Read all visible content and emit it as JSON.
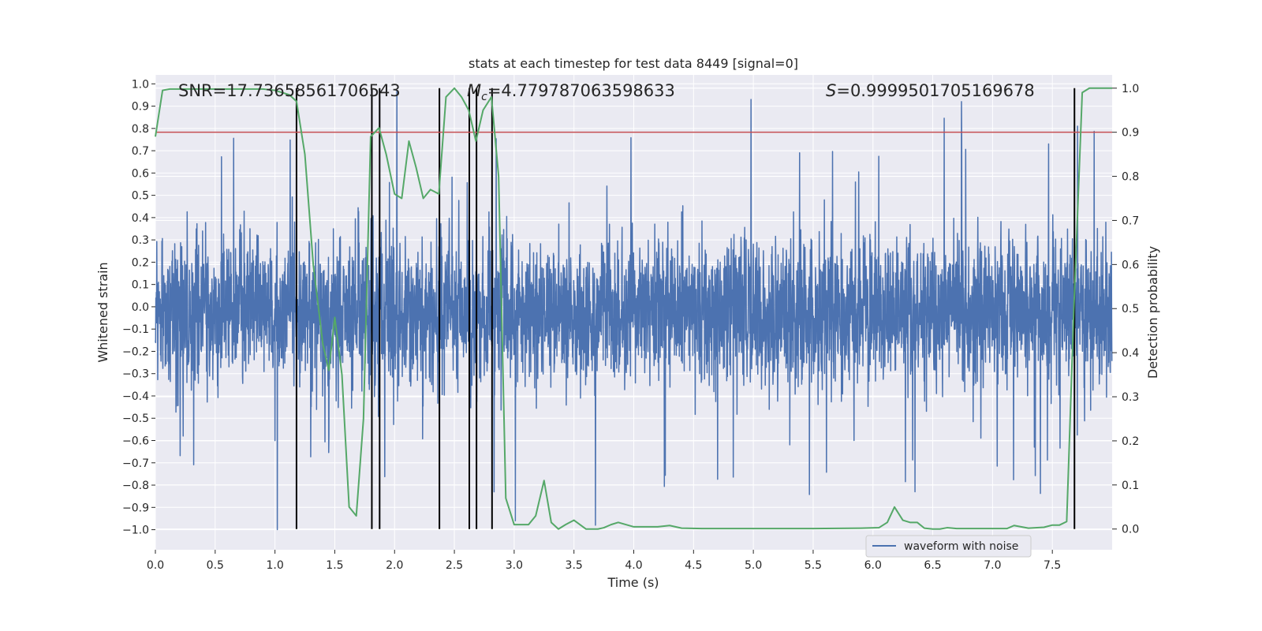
{
  "chart_data": {
    "type": "line",
    "title": "stats at each timestep for test data 8449 [signal=0]",
    "xlabel": "Time (s)",
    "ylabel_left": "Whitened strain",
    "ylabel_right": "Detection probability",
    "xlim": [
      0.0,
      8.0
    ],
    "ylim_left": [
      -1.09,
      1.04
    ],
    "ylim_right": [
      -0.047,
      1.03
    ],
    "x_ticks": [
      0.0,
      0.5,
      1.0,
      1.5,
      2.0,
      2.5,
      3.0,
      3.5,
      4.0,
      4.5,
      5.0,
      5.5,
      6.0,
      6.5,
      7.0,
      7.5
    ],
    "x_tick_labels": [
      "0.0",
      "0.5",
      "1.0",
      "1.5",
      "2.0",
      "2.5",
      "3.0",
      "3.5",
      "4.0",
      "4.5",
      "5.0",
      "5.5",
      "6.0",
      "6.5",
      "7.0",
      "7.5"
    ],
    "y_left_ticks": [
      1.0,
      0.9,
      0.8,
      0.7,
      0.6,
      0.5,
      0.4,
      0.3,
      0.2,
      0.1,
      0.0,
      -0.1,
      -0.2,
      -0.3,
      -0.4,
      -0.5,
      -0.6,
      -0.7,
      -0.8,
      -0.9,
      -1.0
    ],
    "y_left_tick_labels": [
      "1.0",
      "0.9",
      "0.8",
      "0.7",
      "0.6",
      "0.5",
      "0.4",
      "0.3",
      "0.2",
      "0.1",
      "0.0",
      "−0.1",
      "−0.2",
      "−0.3",
      "−0.4",
      "−0.5",
      "−0.6",
      "−0.7",
      "−0.8",
      "−0.9",
      "−1.0"
    ],
    "y_right_ticks": [
      1.0,
      0.9,
      0.8,
      0.7,
      0.6,
      0.5,
      0.4,
      0.3,
      0.2,
      0.1,
      0.0
    ],
    "y_right_tick_labels": [
      "1.0",
      "0.9",
      "0.8",
      "0.7",
      "0.6",
      "0.5",
      "0.4",
      "0.3",
      "0.2",
      "0.1",
      "0.0"
    ],
    "grid": true,
    "legend_position": "lower-right",
    "annotations": {
      "snr": "SNR=17.73658561706543",
      "mc_symbol": "M",
      "mc_subscript": "c",
      "mc_value": "=4.779787063598633",
      "s_symbol": "S",
      "s_value": "=0.9999501705169678"
    },
    "threshold": 0.9,
    "vertical_lines_x": [
      1.18,
      1.81,
      1.875,
      2.375,
      2.625,
      2.685,
      2.815,
      7.685
    ],
    "waveform": {
      "name": "waveform with noise",
      "n_samples": 4096,
      "typical_upper": 0.37,
      "typical_lower": -0.42,
      "max_abs": 1.0,
      "notable_peaks_x": [
        1.02,
        2.02,
        3.01,
        3.68,
        4.98,
        6.74,
        7.71
      ],
      "notable_peaks_y": [
        -1.0,
        0.97,
        -0.96,
        -0.98,
        0.93,
        0.92,
        0.81
      ]
    },
    "probability": {
      "x": [
        0.0,
        0.06,
        0.12,
        0.2,
        0.4,
        0.6,
        0.8,
        0.9,
        1.0,
        1.06,
        1.12,
        1.18,
        1.25,
        1.32,
        1.4,
        1.45,
        1.5,
        1.56,
        1.62,
        1.68,
        1.74,
        1.8,
        1.87,
        1.93,
        2.0,
        2.06,
        2.12,
        2.18,
        2.24,
        2.3,
        2.37,
        2.43,
        2.5,
        2.56,
        2.62,
        2.68,
        2.74,
        2.81,
        2.87,
        2.93,
        3.0,
        3.12,
        3.18,
        3.25,
        3.31,
        3.37,
        3.43,
        3.5,
        3.6,
        3.7,
        3.75,
        3.81,
        3.87,
        4.0,
        4.1,
        4.2,
        4.3,
        4.4,
        4.6,
        5.0,
        5.5,
        5.9,
        6.05,
        6.12,
        6.18,
        6.25,
        6.31,
        6.37,
        6.43,
        6.5,
        6.56,
        6.62,
        6.7,
        6.9,
        7.0,
        7.12,
        7.18,
        7.3,
        7.43,
        7.5,
        7.56,
        7.62,
        7.68,
        7.75,
        7.81,
        7.87,
        8.0
      ],
      "y": [
        0.89,
        0.995,
        0.998,
        0.998,
        0.998,
        0.998,
        0.998,
        0.998,
        0.995,
        0.99,
        0.985,
        0.97,
        0.85,
        0.6,
        0.42,
        0.36,
        0.48,
        0.35,
        0.05,
        0.03,
        0.25,
        0.89,
        0.91,
        0.85,
        0.76,
        0.75,
        0.88,
        0.82,
        0.75,
        0.77,
        0.76,
        0.98,
        1.0,
        0.98,
        0.95,
        0.88,
        0.95,
        0.98,
        0.8,
        0.07,
        0.01,
        0.01,
        0.03,
        0.11,
        0.015,
        0.0,
        0.01,
        0.02,
        0.0,
        0.0,
        0.003,
        0.01,
        0.015,
        0.005,
        0.005,
        0.005,
        0.008,
        0.002,
        0.001,
        0.001,
        0.001,
        0.002,
        0.003,
        0.015,
        0.05,
        0.02,
        0.015,
        0.015,
        0.002,
        0.0,
        0.0,
        0.003,
        0.001,
        0.001,
        0.001,
        0.001,
        0.008,
        0.002,
        0.004,
        0.009,
        0.009,
        0.017,
        0.5,
        0.99,
        1.0,
        1.0,
        1.0
      ]
    },
    "colors": {
      "waveform": "#4c72b0",
      "probability": "#55a868",
      "threshold": "#c44e52",
      "vertical_lines": "#000000",
      "plot_bg": "#eaeaf2",
      "grid": "#ffffff"
    }
  }
}
